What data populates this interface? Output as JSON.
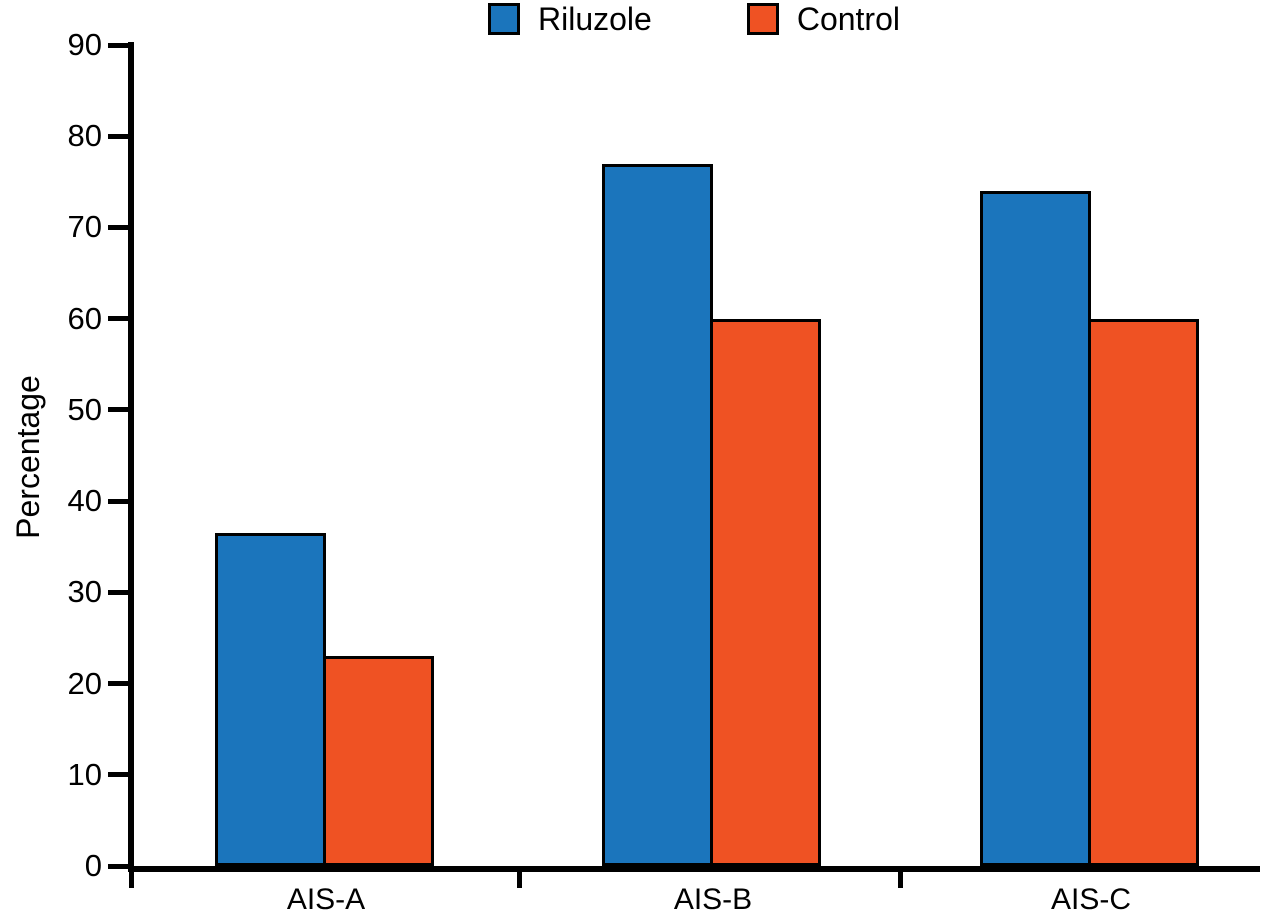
{
  "chart_data": {
    "type": "bar",
    "title": "",
    "xlabel": "",
    "ylabel": "Percentage",
    "categories": [
      "AIS-A",
      "AIS-B",
      "AIS-C"
    ],
    "series": [
      {
        "name": "Riluzole",
        "color": "#1b75bc",
        "values": [
          36.5,
          77,
          74
        ]
      },
      {
        "name": "Control",
        "color": "#ef5223",
        "values": [
          23,
          60,
          60
        ]
      }
    ],
    "ylim": [
      0,
      90
    ],
    "yticks": [
      0,
      10,
      20,
      30,
      40,
      50,
      60,
      70,
      80,
      90
    ],
    "grid": false,
    "legend_position": "top-center",
    "axis_color": "#000000"
  }
}
